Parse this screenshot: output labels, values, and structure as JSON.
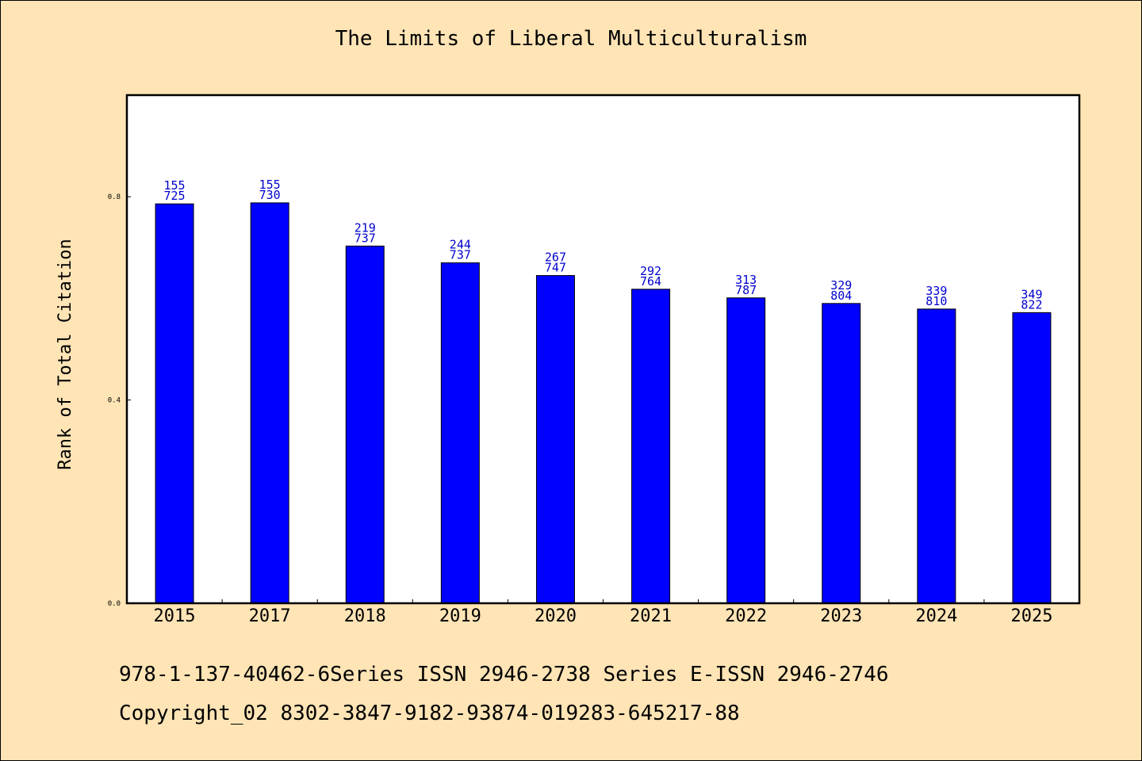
{
  "title": "The Limits of Liberal Multiculturalism",
  "footer": {
    "line1": "978-1-137-40462-6Series ISSN 2946-2738 Series E-ISSN 2946-2746",
    "line2": "Copyright_02 8302-3847-9182-93874-019283-645217-88"
  },
  "chart_data": {
    "type": "bar",
    "title": "The Limits of Liberal Multiculturalism",
    "xlabel": "",
    "ylabel": "Rank of Total Citation",
    "categories": [
      "2015",
      "2017",
      "2018",
      "2019",
      "2020",
      "2021",
      "2022",
      "2023",
      "2024",
      "2025"
    ],
    "values": [
      0.786,
      0.788,
      0.703,
      0.67,
      0.645,
      0.618,
      0.601,
      0.59,
      0.579,
      0.572
    ],
    "label_top": [
      "155",
      "155",
      "219",
      "244",
      "267",
      "292",
      "313",
      "329",
      "339",
      "349"
    ],
    "label_bottom": [
      "725",
      "730",
      "737",
      "737",
      "747",
      "764",
      "787",
      "804",
      "810",
      "822"
    ],
    "yticks": [
      "0.0",
      "0.4",
      "0.8"
    ],
    "ylim": [
      0,
      1.0
    ],
    "bar_color": "#0000ff",
    "label_color": "#0000cd",
    "grid": false,
    "legend": "none"
  }
}
